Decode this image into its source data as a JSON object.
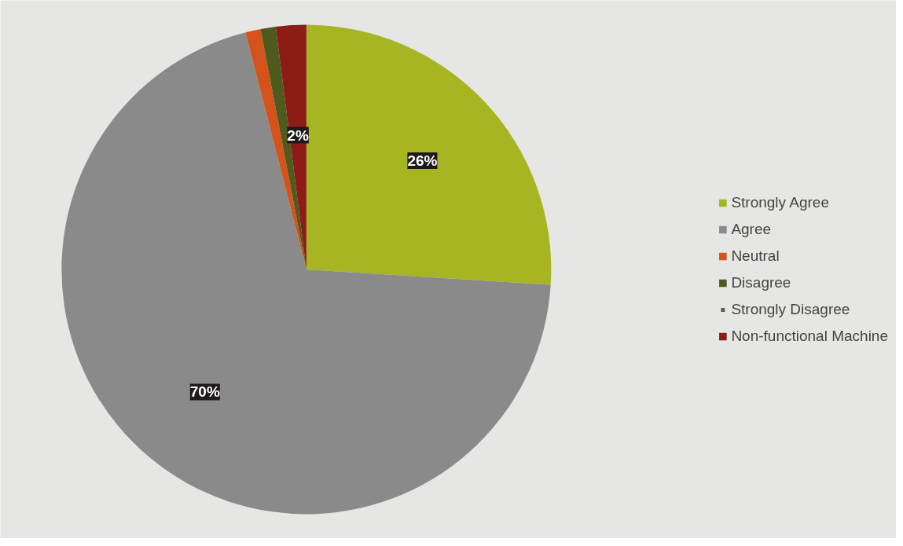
{
  "chart_data": {
    "type": "pie",
    "categories": [
      "Strongly Agree",
      "Agree",
      "Neutral",
      "Disagree",
      "Strongly Disagree",
      "Non-functional Machine"
    ],
    "values": [
      26,
      70,
      1,
      1,
      0,
      2
    ],
    "colors": [
      "#a8b523",
      "#8a8a8a",
      "#d4521c",
      "#4f5a1e",
      "#5a5a5a",
      "#8e1c16"
    ],
    "value_labels": [
      "26%",
      "70%",
      null,
      null,
      null,
      "2%"
    ],
    "legend": "right"
  }
}
